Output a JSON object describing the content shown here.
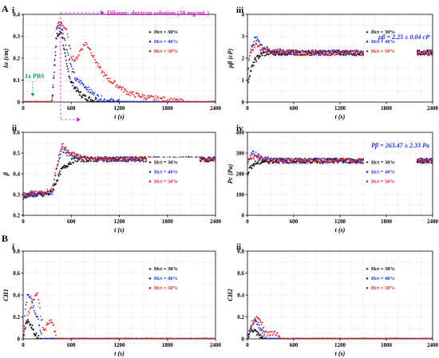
{
  "sections": [
    "A",
    "B"
  ],
  "chart_data": [
    {
      "id": "Ai",
      "panel": "i",
      "type": "scatter",
      "xlabel": "t (s)",
      "ylabel": "Iα (cm)",
      "xlim": [
        0,
        2400
      ],
      "ylim": [
        0,
        0.4
      ],
      "xticks": [
        "0",
        "600",
        "1200",
        "1800",
        "2400"
      ],
      "yticks": [
        "0",
        "0.1",
        "0.2",
        "0.3",
        "0.4"
      ],
      "grid": true,
      "legend": "right",
      "annotations": [
        {
          "text": "Diluent: dextran solution (20 mg/mL)",
          "color": "#e020e0"
        },
        {
          "text": "1x PBS",
          "color": "#12a050"
        }
      ],
      "series": [
        {
          "name": "Hct = 30%",
          "color": "#000000",
          "x": [
            0,
            240,
            300,
            360,
            420,
            480,
            540,
            600,
            660,
            720,
            780,
            840,
            900,
            960,
            1200,
            2400
          ],
          "y": [
            0,
            0,
            0,
            0,
            0.3,
            0.32,
            0.17,
            0.09,
            0.06,
            0.035,
            0.02,
            0.012,
            0.005,
            0,
            0,
            0
          ]
        },
        {
          "name": "Hct = 40%",
          "color": "#1f2fe0",
          "x": [
            0,
            240,
            300,
            360,
            420,
            480,
            540,
            600,
            660,
            720,
            780,
            840,
            900,
            960,
            1020,
            1080,
            1200,
            2400
          ],
          "y": [
            0,
            0,
            0,
            0,
            0.34,
            0.35,
            0.25,
            0.16,
            0.1,
            0.09,
            0.07,
            0.05,
            0.03,
            0.02,
            0.01,
            0.005,
            0,
            0
          ]
        },
        {
          "name": "Hct = 50%",
          "color": "#e02020",
          "x": [
            0,
            240,
            300,
            360,
            420,
            480,
            540,
            600,
            660,
            720,
            780,
            840,
            900,
            960,
            1020,
            1080,
            1200,
            1320,
            1440,
            1560,
            1680,
            1800,
            1900,
            2000,
            2400
          ],
          "y": [
            0,
            0,
            0,
            0,
            0.35,
            0.36,
            0.33,
            0.21,
            0.19,
            0.24,
            0.27,
            0.24,
            0.19,
            0.15,
            0.12,
            0.1,
            0.07,
            0.04,
            0.03,
            0.02,
            0.015,
            0.01,
            0.005,
            0,
            0
          ]
        }
      ]
    },
    {
      "id": "Aiii",
      "panel": "iii",
      "type": "scatter",
      "xlabel": "t (s)",
      "ylabel": "μβ (cP)",
      "xlim": [
        0,
        2400
      ],
      "ylim": [
        0,
        4
      ],
      "xticks": [
        "0",
        "600",
        "1200",
        "1800",
        "2400"
      ],
      "yticks": [
        "0",
        "1",
        "2",
        "3",
        "4"
      ],
      "grid": true,
      "legend": "right",
      "annotations": [
        {
          "text": "μβ = 2.25 ± 0.04 cP",
          "color": "#1f2fe0"
        }
      ],
      "series": [
        {
          "name": "Hct = 30%",
          "color": "#000000",
          "x": [
            0,
            30,
            60,
            100,
            150,
            200,
            300,
            400,
            600,
            900,
            1200,
            1500,
            1800,
            2100,
            2400
          ],
          "y": [
            0.8,
            1.3,
            1.6,
            1.9,
            2.1,
            2.2,
            2.25,
            2.25,
            2.25,
            2.25,
            2.25,
            2.25,
            2.25,
            2.25,
            2.25
          ]
        },
        {
          "name": "Hct = 40%",
          "color": "#1f2fe0",
          "x": [
            0,
            30,
            60,
            100,
            150,
            200,
            300,
            400,
            600,
            900,
            1200,
            1500,
            1800,
            2100,
            2400
          ],
          "y": [
            1.2,
            2.2,
            2.6,
            2.9,
            2.8,
            2.5,
            2.3,
            2.3,
            2.25,
            2.25,
            2.25,
            2.25,
            2.25,
            2.25,
            2.25
          ]
        },
        {
          "name": "Hct = 50%",
          "color": "#e02020",
          "x": [
            0,
            30,
            60,
            100,
            150,
            200,
            300,
            400,
            600,
            900,
            1200,
            1500,
            1800,
            2100,
            2400
          ],
          "y": [
            1.3,
            2.1,
            2.4,
            2.6,
            2.5,
            2.4,
            2.3,
            2.3,
            2.25,
            2.25,
            2.25,
            2.25,
            2.25,
            2.25,
            2.25
          ]
        }
      ]
    },
    {
      "id": "Aii",
      "panel": "ii",
      "type": "scatter",
      "xlabel": "t (s)",
      "ylabel": "β",
      "xlim": [
        0,
        2400
      ],
      "ylim": [
        0.2,
        0.6
      ],
      "xticks": [
        "0",
        "600",
        "1200",
        "1800",
        "2400"
      ],
      "yticks": [
        "0.2",
        "0.3",
        "0.4",
        "0.5",
        "0.6"
      ],
      "grid": true,
      "legend": "right",
      "annotations": [],
      "series": [
        {
          "name": "Hct = 30%",
          "color": "#000000",
          "x": [
            0,
            60,
            120,
            240,
            360,
            420,
            480,
            540,
            600,
            660,
            720,
            900,
            1200,
            1500,
            1800,
            2100,
            2400
          ],
          "y": [
            0.28,
            0.3,
            0.3,
            0.3,
            0.31,
            0.37,
            0.42,
            0.44,
            0.46,
            0.47,
            0.47,
            0.47,
            0.47,
            0.47,
            0.47,
            0.47,
            0.47
          ]
        },
        {
          "name": "Hct = 40%",
          "color": "#1f2fe0",
          "x": [
            0,
            60,
            120,
            240,
            360,
            420,
            480,
            540,
            600,
            660,
            720,
            900,
            1200,
            1500,
            1800,
            2100,
            2400
          ],
          "y": [
            0.29,
            0.3,
            0.3,
            0.3,
            0.31,
            0.43,
            0.52,
            0.5,
            0.49,
            0.48,
            0.48,
            0.47,
            0.47,
            0.47,
            0.47,
            0.47,
            0.47
          ]
        },
        {
          "name": "Hct = 50%",
          "color": "#e02020",
          "x": [
            0,
            60,
            120,
            240,
            360,
            420,
            480,
            540,
            600,
            660,
            720,
            900,
            1200,
            1500,
            1800,
            2100,
            2400
          ],
          "y": [
            0.3,
            0.3,
            0.31,
            0.31,
            0.32,
            0.44,
            0.54,
            0.52,
            0.5,
            0.49,
            0.48,
            0.47,
            0.47,
            0.47,
            0.47,
            0.47,
            0.47
          ]
        }
      ]
    },
    {
      "id": "Aiv",
      "panel": "iv",
      "type": "scatter",
      "xlabel": "t (s)",
      "ylabel": "Pc (Pa)",
      "xlim": [
        0,
        2400
      ],
      "ylim": [
        0,
        400
      ],
      "xticks": [
        "0",
        "600",
        "1200",
        "1800",
        "2400"
      ],
      "yticks": [
        "0",
        "100",
        "200",
        "300",
        "400"
      ],
      "grid": true,
      "legend": "right",
      "annotations": [
        {
          "text": "Pβ = 263.47 ± 2.33 Pa",
          "color": "#1f2fe0"
        }
      ],
      "series": [
        {
          "name": "Hct = 30%",
          "color": "#000000",
          "x": [
            0,
            30,
            60,
            100,
            150,
            200,
            300,
            400,
            600,
            900,
            1200,
            1500,
            1800,
            2100,
            2400
          ],
          "y": [
            200,
            225,
            240,
            250,
            255,
            260,
            262,
            263,
            263,
            263,
            263,
            263,
            263,
            263,
            263
          ]
        },
        {
          "name": "Hct = 40%",
          "color": "#1f2fe0",
          "x": [
            0,
            30,
            60,
            100,
            150,
            200,
            300,
            400,
            600,
            900,
            1200,
            1500,
            1800,
            2100,
            2400
          ],
          "y": [
            240,
            280,
            300,
            295,
            285,
            275,
            268,
            265,
            263,
            263,
            263,
            263,
            263,
            263,
            263
          ]
        },
        {
          "name": "Hct = 50%",
          "color": "#e02020",
          "x": [
            0,
            30,
            60,
            100,
            150,
            200,
            300,
            400,
            600,
            900,
            1200,
            1500,
            1800,
            2100,
            2400
          ],
          "y": [
            250,
            275,
            285,
            280,
            275,
            270,
            266,
            264,
            263,
            263,
            263,
            263,
            263,
            263,
            263
          ]
        }
      ]
    },
    {
      "id": "Bi",
      "panel": "i",
      "type": "scatter",
      "xlabel": "t (s)",
      "ylabel": "CH1",
      "xlim": [
        0,
        2400
      ],
      "ylim": [
        0,
        0.8
      ],
      "xticks": [
        "0",
        "600",
        "1200",
        "1800",
        "2400"
      ],
      "yticks": [
        "0",
        "0.2",
        "0.4",
        "0.6",
        "0.8"
      ],
      "grid": true,
      "legend": "right",
      "annotations": [],
      "series": [
        {
          "name": "Hct = 30%",
          "color": "#000000",
          "x": [
            0,
            30,
            60,
            90,
            120,
            150,
            200,
            2400
          ],
          "y": [
            0,
            0.12,
            0.16,
            0.14,
            0.1,
            0.05,
            0,
            0
          ]
        },
        {
          "name": "Hct = 40%",
          "color": "#1f2fe0",
          "x": [
            0,
            30,
            60,
            90,
            120,
            150,
            180,
            210,
            240,
            2400
          ],
          "y": [
            0,
            0.28,
            0.42,
            0.38,
            0.3,
            0.25,
            0.18,
            0.1,
            0,
            0
          ]
        },
        {
          "name": "Hct = 50%",
          "color": "#e02020",
          "x": [
            0,
            60,
            100,
            140,
            180,
            220,
            260,
            300,
            340,
            380,
            420,
            2400
          ],
          "y": [
            0,
            0.22,
            0.3,
            0.38,
            0.42,
            0.22,
            0.08,
            0.12,
            0.16,
            0.12,
            0,
            0
          ]
        }
      ]
    },
    {
      "id": "Bii",
      "panel": "ii",
      "type": "scatter",
      "xlabel": "t (s)",
      "ylabel": "CH2",
      "xlim": [
        0,
        2400
      ],
      "ylim": [
        0,
        0.8
      ],
      "xticks": [
        "0",
        "600",
        "1200",
        "1800",
        "2400"
      ],
      "yticks": [
        "0",
        "0.2",
        "0.4",
        "0.6",
        "0.8"
      ],
      "grid": true,
      "legend": "right",
      "annotations": [],
      "series": [
        {
          "name": "Hct = 30%",
          "color": "#000000",
          "x": [
            0,
            30,
            60,
            90,
            120,
            150,
            200,
            2400
          ],
          "y": [
            0,
            0.06,
            0.08,
            0.07,
            0.05,
            0.03,
            0,
            0
          ]
        },
        {
          "name": "Hct = 40%",
          "color": "#1f2fe0",
          "x": [
            0,
            30,
            60,
            90,
            120,
            150,
            180,
            210,
            240,
            2400
          ],
          "y": [
            0,
            0.1,
            0.14,
            0.16,
            0.15,
            0.12,
            0.08,
            0.05,
            0,
            0
          ]
        },
        {
          "name": "Hct = 50%",
          "color": "#e02020",
          "x": [
            0,
            60,
            100,
            140,
            180,
            220,
            260,
            300,
            340,
            380,
            420,
            2400
          ],
          "y": [
            0,
            0.12,
            0.18,
            0.2,
            0.16,
            0.08,
            0.04,
            0.05,
            0.06,
            0.04,
            0,
            0
          ]
        }
      ]
    }
  ]
}
